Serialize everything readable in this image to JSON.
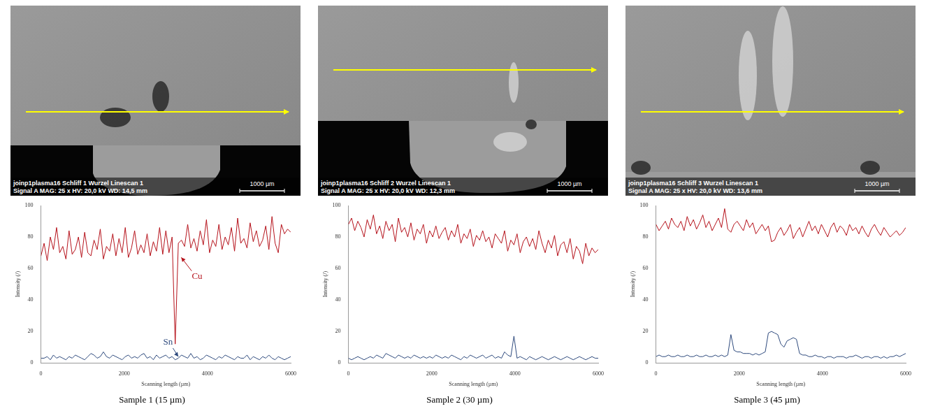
{
  "chart_data": [
    {
      "type": "line",
      "title": "Sample 1 (15 µm)",
      "x_label": "Scanning length (µm)",
      "y_label": "Intensity (/)",
      "xlim": [
        0,
        6000
      ],
      "xticks": [
        0,
        2000,
        4000,
        6000
      ],
      "ylim": [
        0,
        100
      ],
      "yticks": [
        0,
        20,
        40,
        60,
        80,
        100
      ],
      "grid": false,
      "x": [
        0,
        75,
        150,
        225,
        300,
        375,
        450,
        525,
        600,
        675,
        750,
        825,
        900,
        975,
        1050,
        1125,
        1200,
        1275,
        1350,
        1425,
        1500,
        1575,
        1650,
        1725,
        1800,
        1875,
        1950,
        2025,
        2100,
        2175,
        2250,
        2325,
        2400,
        2475,
        2550,
        2625,
        2700,
        2775,
        2850,
        2925,
        3000,
        3075,
        3150,
        3225,
        3300,
        3375,
        3450,
        3525,
        3600,
        3675,
        3750,
        3825,
        3900,
        3975,
        4050,
        4125,
        4200,
        4275,
        4350,
        4425,
        4500,
        4575,
        4650,
        4725,
        4800,
        4875,
        4950,
        5025,
        5100,
        5175,
        5250,
        5325,
        5400,
        5475,
        5550,
        5625,
        5700,
        5775,
        5850,
        5925,
        6000
      ],
      "series": [
        {
          "name": "Cu",
          "color": "#b5121b",
          "values": [
            68,
            76,
            65,
            80,
            72,
            86,
            70,
            74,
            66,
            84,
            69,
            72,
            80,
            67,
            83,
            70,
            68,
            78,
            72,
            85,
            66,
            74,
            71,
            82,
            68,
            79,
            70,
            86,
            67,
            73,
            84,
            69,
            75,
            70,
            82,
            68,
            77,
            71,
            86,
            69,
            84,
            70,
            80,
            12,
            76,
            78,
            74,
            88,
            73,
            79,
            71,
            84,
            75,
            91,
            70,
            78,
            74,
            88,
            72,
            80,
            75,
            86,
            71,
            92,
            76,
            79,
            73,
            89,
            77,
            84,
            74,
            78,
            87,
            72,
            93,
            76,
            70,
            88,
            82,
            85,
            83
          ]
        },
        {
          "name": "Sn",
          "color": "#2e4a7d",
          "values": [
            3,
            3,
            4,
            2,
            5,
            3,
            4,
            3,
            2,
            4,
            3,
            5,
            4,
            3,
            2,
            4,
            6,
            5,
            3,
            4,
            7,
            4,
            3,
            5,
            4,
            3,
            2,
            4,
            5,
            3,
            4,
            3,
            5,
            6,
            3,
            4,
            2,
            5,
            3,
            4,
            5,
            3,
            4,
            2,
            3,
            5,
            4,
            3,
            6,
            3,
            4,
            2,
            3,
            5,
            4,
            3,
            2,
            4,
            3,
            5,
            4,
            3,
            2,
            4,
            3,
            3,
            5,
            2,
            4,
            3,
            2,
            4,
            3,
            5,
            3,
            2,
            4,
            3,
            2,
            3,
            4
          ]
        }
      ],
      "annotations": [
        {
          "text": "Cu",
          "x": 3750,
          "y": 55,
          "arrow_to": [
            3370,
            67
          ],
          "color": "#b5121b"
        },
        {
          "text": "Sn",
          "x": 3050,
          "y": 13,
          "arrow_to": [
            3300,
            4
          ],
          "color": "#2e4a7d"
        }
      ]
    },
    {
      "type": "line",
      "title": "Sample 2 (30 µm)",
      "x_label": "Scanning length (µm)",
      "y_label": "Intensity (/)",
      "xlim": [
        0,
        6000
      ],
      "xticks": [
        0,
        2000,
        4000,
        6000
      ],
      "ylim": [
        0,
        100
      ],
      "yticks": [
        0,
        20,
        40,
        60,
        80,
        100
      ],
      "grid": false,
      "x": [
        0,
        75,
        150,
        225,
        300,
        375,
        450,
        525,
        600,
        675,
        750,
        825,
        900,
        975,
        1050,
        1125,
        1200,
        1275,
        1350,
        1425,
        1500,
        1575,
        1650,
        1725,
        1800,
        1875,
        1950,
        2025,
        2100,
        2175,
        2250,
        2325,
        2400,
        2475,
        2550,
        2625,
        2700,
        2775,
        2850,
        2925,
        3000,
        3075,
        3150,
        3225,
        3300,
        3375,
        3450,
        3525,
        3600,
        3675,
        3750,
        3825,
        3900,
        3975,
        4050,
        4125,
        4200,
        4275,
        4350,
        4425,
        4500,
        4575,
        4650,
        4725,
        4800,
        4875,
        4950,
        5025,
        5100,
        5175,
        5250,
        5325,
        5400,
        5475,
        5550,
        5625,
        5700,
        5775,
        5850,
        5925,
        6000
      ],
      "series": [
        {
          "color": "#b5121b",
          "values": [
            88,
            92,
            84,
            90,
            86,
            80,
            91,
            85,
            94,
            82,
            87,
            79,
            90,
            84,
            88,
            77,
            92,
            83,
            86,
            80,
            89,
            78,
            85,
            82,
            88,
            76,
            84,
            80,
            87,
            79,
            83,
            86,
            78,
            84,
            80,
            88,
            76,
            82,
            79,
            85,
            74,
            81,
            78,
            84,
            77,
            80,
            73,
            82,
            79,
            76,
            84,
            71,
            78,
            75,
            82,
            70,
            77,
            80,
            74,
            79,
            72,
            84,
            76,
            70,
            78,
            73,
            81,
            68,
            75,
            77,
            70,
            79,
            66,
            74,
            71,
            63,
            76,
            68,
            73,
            70,
            72
          ]
        },
        {
          "color": "#2e4a7d",
          "values": [
            3,
            2,
            3,
            4,
            3,
            2,
            3,
            4,
            3,
            5,
            4,
            3,
            6,
            5,
            4,
            3,
            5,
            4,
            3,
            4,
            3,
            5,
            4,
            3,
            4,
            3,
            4,
            3,
            5,
            4,
            3,
            4,
            3,
            5,
            4,
            3,
            2,
            4,
            3,
            5,
            4,
            3,
            4,
            5,
            3,
            4,
            5,
            3,
            4,
            3,
            7,
            5,
            4,
            17,
            3,
            4,
            3,
            2,
            4,
            3,
            2,
            3,
            4,
            3,
            2,
            3,
            4,
            3,
            2,
            3,
            4,
            3,
            2,
            3,
            4,
            3,
            2,
            3,
            4,
            3,
            3
          ]
        }
      ]
    },
    {
      "type": "line",
      "title": "Sample 3 (45 µm)",
      "x_label": "Scanning length (µm)",
      "y_label": "Intensity (/)",
      "xlim": [
        0,
        6000
      ],
      "xticks": [
        0,
        2000,
        4000,
        6000
      ],
      "ylim": [
        0,
        100
      ],
      "yticks": [
        0,
        20,
        40,
        60,
        80,
        100
      ],
      "grid": false,
      "x": [
        0,
        75,
        150,
        225,
        300,
        375,
        450,
        525,
        600,
        675,
        750,
        825,
        900,
        975,
        1050,
        1125,
        1200,
        1275,
        1350,
        1425,
        1500,
        1575,
        1650,
        1725,
        1800,
        1875,
        1950,
        2025,
        2100,
        2175,
        2250,
        2325,
        2400,
        2475,
        2550,
        2625,
        2700,
        2775,
        2850,
        2925,
        3000,
        3075,
        3150,
        3225,
        3300,
        3375,
        3450,
        3525,
        3600,
        3675,
        3750,
        3825,
        3900,
        3975,
        4050,
        4125,
        4200,
        4275,
        4350,
        4425,
        4500,
        4575,
        4650,
        4725,
        4800,
        4875,
        4950,
        5025,
        5100,
        5175,
        5250,
        5325,
        5400,
        5475,
        5550,
        5625,
        5700,
        5775,
        5850,
        5925,
        6000
      ],
      "series": [
        {
          "color": "#b5121b",
          "values": [
            88,
            84,
            87,
            90,
            85,
            92,
            88,
            86,
            90,
            84,
            93,
            87,
            91,
            85,
            89,
            94,
            86,
            90,
            84,
            88,
            92,
            86,
            98,
            85,
            83,
            88,
            90,
            87,
            84,
            91,
            86,
            89,
            82,
            85,
            88,
            84,
            87,
            77,
            78,
            83,
            86,
            81,
            84,
            88,
            79,
            83,
            86,
            80,
            85,
            90,
            84,
            87,
            82,
            88,
            84,
            80,
            86,
            89,
            83,
            87,
            85,
            81,
            88,
            84,
            86,
            82,
            87,
            83,
            80,
            85,
            88,
            84,
            81,
            86,
            83,
            80,
            82,
            84,
            81,
            83,
            86
          ]
        },
        {
          "color": "#2e4a7d",
          "values": [
            4,
            5,
            4,
            4,
            5,
            4,
            4,
            5,
            4,
            4,
            5,
            4,
            4,
            5,
            4,
            4,
            5,
            4,
            4,
            5,
            4,
            5,
            4,
            5,
            18,
            8,
            7,
            7,
            6,
            6,
            6,
            5,
            6,
            5,
            6,
            7,
            19,
            20,
            19,
            18,
            12,
            10,
            14,
            15,
            16,
            15,
            6,
            5,
            5,
            4,
            4,
            5,
            4,
            4,
            3,
            4,
            4,
            3,
            4,
            4,
            4,
            3,
            4,
            4,
            5,
            4,
            3,
            4,
            4,
            3,
            4,
            4,
            3,
            4,
            3,
            4,
            4,
            5,
            4,
            5,
            6
          ]
        }
      ]
    }
  ],
  "micrographs": [
    {
      "header": "joinp1plasma16  Schliff 1 Wurzel Linescan 1",
      "info": "Signal A  MAG: 25 x  HV: 20,0 kV  WD: 14,5 mm",
      "scale_bar": "1000 µm"
    },
    {
      "header": "joinp1plasma16  Schliff 2 Wurzel Linescan 1",
      "info": "Signal A  MAG: 25 x  HV: 20,0 kV  WD: 12,3 mm",
      "scale_bar": "1000 µm"
    },
    {
      "header": "joinp1plasma16  Schliff 3 Wurzel Linescan 1",
      "info": "Signal A  MAG: 25 x  HV: 20,0 kV  WD: 13,6 mm",
      "scale_bar": "1000 µm"
    }
  ]
}
